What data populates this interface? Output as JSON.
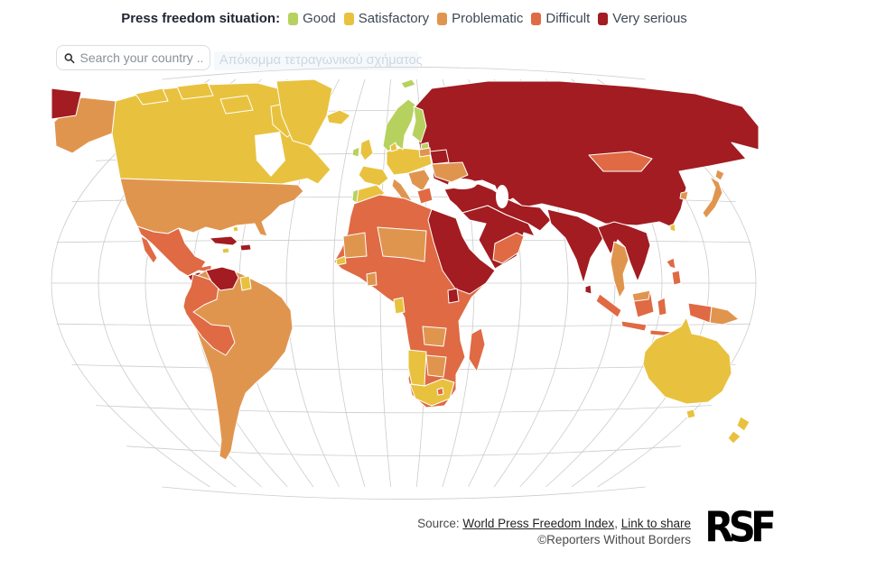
{
  "legend": {
    "title": "Press freedom situation:",
    "items": [
      {
        "id": "good",
        "label": "Good",
        "color": "#b7d15f"
      },
      {
        "id": "satisfactory",
        "label": "Satisfactory",
        "color": "#e8c23f"
      },
      {
        "id": "problematic",
        "label": "Problematic",
        "color": "#e0954f"
      },
      {
        "id": "difficult",
        "label": "Difficult",
        "color": "#df6a44"
      },
      {
        "id": "very_serious",
        "label": "Very serious",
        "color": "#a21c21"
      }
    ]
  },
  "search": {
    "placeholder": "Search your country ...",
    "ghost_text": "Απόκομμα τετραγωνικού σχήματος",
    "icon": "magnifier-icon"
  },
  "footer": {
    "source_prefix": "Source: ",
    "link_index": "World Press Freedom Index",
    "separator": ", ",
    "link_share": "Link to share",
    "copyright": "©Reporters Without Borders",
    "logo_text": "RSF"
  },
  "map": {
    "projection": "pseudocylindrical world map with graticule",
    "graticule_color": "#cccccc",
    "border_color": "#ffffff",
    "category_colors": {
      "good": "#b7d15f",
      "satisfactory": "#e8c23f",
      "problematic": "#e0954f",
      "difficult": "#df6a44",
      "very_serious": "#a21c21"
    },
    "regions": {
      "russia-east-tip": "very_serious",
      "alaska": "problematic",
      "canada": "satisfactory",
      "arctic-islands": "satisfactory",
      "greenland": "satisfactory",
      "iceland": "satisfactory",
      "usa": "problematic",
      "mexico": "difficult",
      "central-america": "very_serious",
      "costa-rica": "good",
      "panama": "problematic",
      "cuba": "very_serious",
      "hispaniola": "very_serious",
      "jamaica": "satisfactory",
      "bahamas": "satisfactory",
      "venezuela": "very_serious",
      "suriname": "satisfactory",
      "south-america-base": "problematic",
      "andes": "difficult",
      "africa-base": "difficult",
      "ne-africa": "very_serious",
      "uganda": "very_serious",
      "sahel": "problematic",
      "west-sahel": "problematic",
      "senegal": "satisfactory",
      "ghana": "problematic",
      "gabon": "satisfactory",
      "zambia": "problematic",
      "botswana": "problematic",
      "namibia": "satisfactory",
      "south-africa": "satisfactory",
      "lesotho": "difficult",
      "madagascar": "difficult",
      "europe-central": "satisfactory",
      "scandinavia": "good",
      "svalbard": "good",
      "estonia": "good",
      "baltics": "problematic",
      "denmark": "satisfactory",
      "belarus": "very_serious",
      "ukraine": "problematic",
      "uk": "satisfactory",
      "ireland": "good",
      "france": "satisfactory",
      "iberia": "satisfactory",
      "portugal": "good",
      "italy": "problematic",
      "balkans": "problematic",
      "greece": "difficult",
      "asia-base": "very_serious",
      "middle-east": "very_serious",
      "yemen-oman": "difficult",
      "india": "very_serious",
      "sri-lanka": "very_serious",
      "se-asia": "very_serious",
      "thailand": "problematic",
      "mongolia": "difficult",
      "south-korea": "problematic",
      "taiwan": "satisfactory",
      "japan": "problematic",
      "philippines": "difficult",
      "sumatra": "difficult",
      "java": "difficult",
      "borneo": "difficult",
      "borneo-malaysia": "problematic",
      "sulawesi": "difficult",
      "lesser-sunda": "difficult",
      "papua-west": "difficult",
      "papua-png": "problematic",
      "australia": "satisfactory",
      "tasmania": "satisfactory",
      "new-zealand": "satisfactory"
    }
  }
}
